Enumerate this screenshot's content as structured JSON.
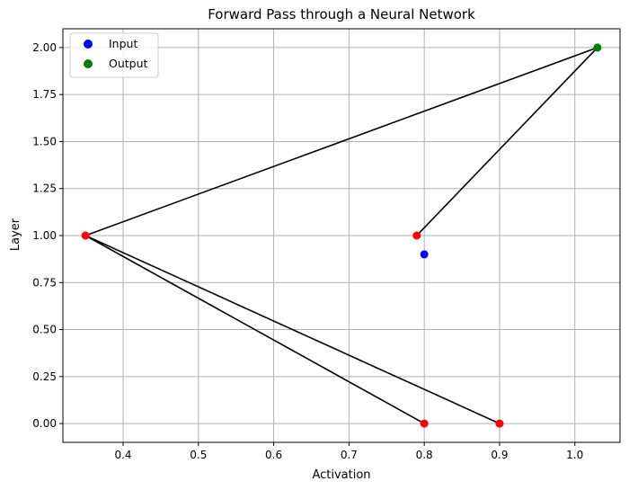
{
  "chart_data": {
    "type": "scatter",
    "title": "Forward Pass through a Neural Network",
    "xlabel": "Activation",
    "ylabel": "Layer",
    "xlim": [
      0.32,
      1.06
    ],
    "ylim": [
      -0.1,
      2.1
    ],
    "x_ticks": [
      "0.4",
      "0.5",
      "0.6",
      "0.7",
      "0.8",
      "0.9",
      "1.0"
    ],
    "x_tick_values": [
      0.4,
      0.5,
      0.6,
      0.7,
      0.8,
      0.9,
      1.0
    ],
    "y_ticks": [
      "0.00",
      "0.25",
      "0.50",
      "0.75",
      "1.00",
      "1.25",
      "1.50",
      "1.75",
      "2.00"
    ],
    "y_tick_values": [
      0.0,
      0.25,
      0.5,
      0.75,
      1.0,
      1.25,
      1.5,
      1.75,
      2.0
    ],
    "grid": true,
    "legend_position": "top-left",
    "series": [
      {
        "name": "Input",
        "color": "#0000ff",
        "points": [
          [
            0.8,
            0.9
          ]
        ]
      },
      {
        "name": "Output",
        "color": "#008000",
        "points": [
          [
            1.03,
            2.0
          ]
        ]
      }
    ],
    "hidden_nodes": {
      "color": "#ff0000",
      "points": [
        [
          0.8,
          0.0
        ],
        [
          0.9,
          0.0
        ],
        [
          0.35,
          1.0
        ],
        [
          0.79,
          1.0
        ]
      ]
    },
    "connections": {
      "color": "#000000",
      "segments": [
        [
          [
            0.35,
            1.0
          ],
          [
            0.8,
            0.0
          ]
        ],
        [
          [
            0.35,
            1.0
          ],
          [
            0.9,
            0.0
          ]
        ],
        [
          [
            0.35,
            1.0
          ],
          [
            1.03,
            2.0
          ]
        ],
        [
          [
            0.79,
            1.0
          ],
          [
            1.03,
            2.0
          ]
        ]
      ]
    },
    "grid_color": "#b0b0b0"
  }
}
